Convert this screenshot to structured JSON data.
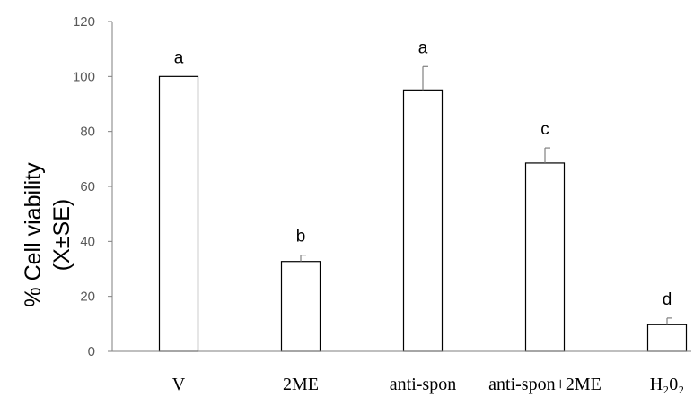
{
  "chart_data": {
    "type": "bar",
    "categories": [
      "V",
      "2ME",
      "anti-spon",
      "anti-spon+2ME",
      "H₂0₂"
    ],
    "values": [
      100,
      32.7,
      95.1,
      68.5,
      9.7
    ],
    "errors": [
      0,
      2.3,
      8.5,
      5.5,
      2.4
    ],
    "significance_labels": [
      "a",
      "b",
      "a",
      "c",
      "d"
    ],
    "ylabel_lines": [
      "% Cell viability",
      "(X±SE)"
    ],
    "xlabel": "",
    "title": "",
    "ylim": [
      0,
      120
    ],
    "yticks": [
      0,
      20,
      40,
      60,
      80,
      100,
      120
    ],
    "grid": false,
    "legend": "none",
    "colors": {
      "bar_fill": "#ffffff",
      "bar_stroke": "#000000",
      "axis": "#7f7f7f",
      "tick_text": "#595959"
    }
  }
}
